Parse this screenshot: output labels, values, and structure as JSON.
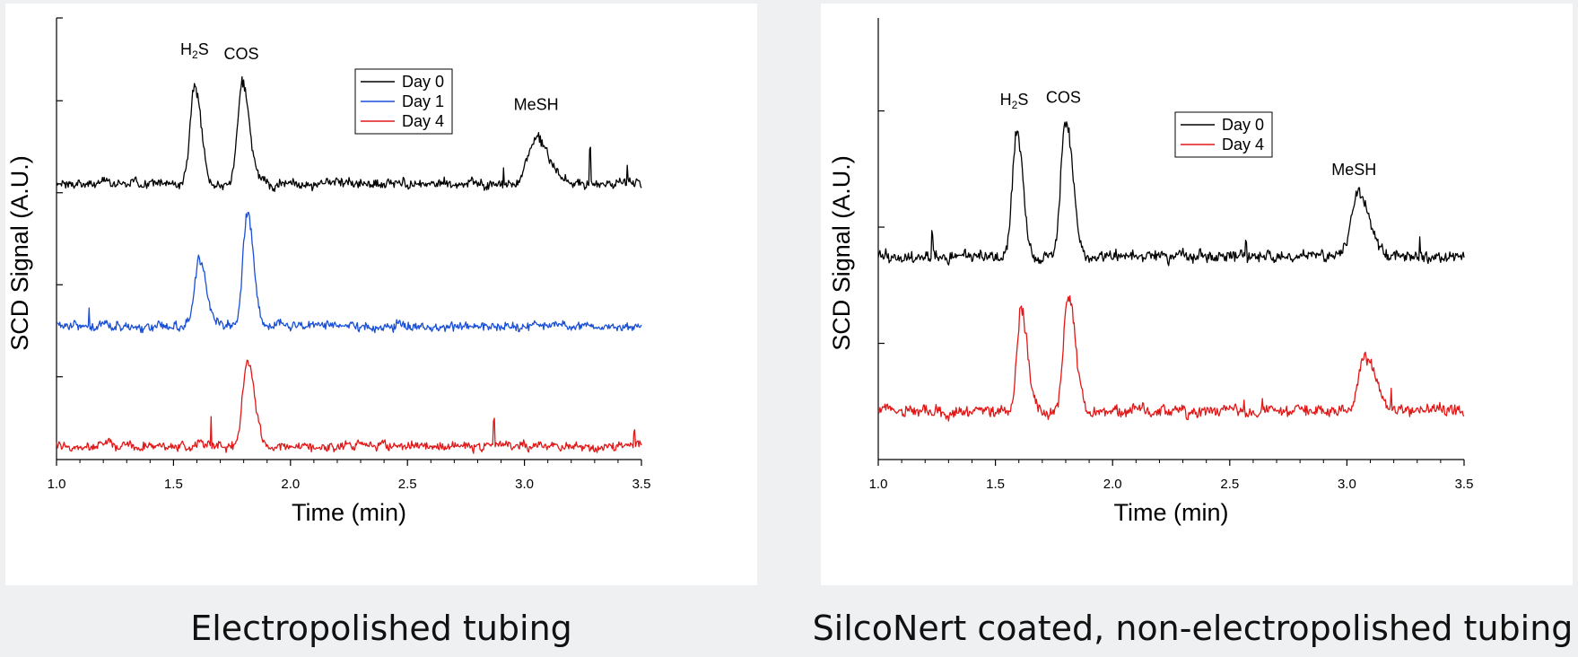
{
  "chart_data": [
    {
      "type": "line",
      "xlabel": "Time (min)",
      "ylabel": "SCD Signal (A.U.)",
      "xlim": [
        1.0,
        3.5
      ],
      "ylim": [
        0,
        4.8
      ],
      "xticks": [
        "1.0",
        "1.5",
        "2.0",
        "2.5",
        "3.0",
        "3.5"
      ],
      "ytick_values": [
        0.9,
        1.9,
        2.9,
        3.9,
        4.9
      ],
      "grid": false,
      "legend_position": "top-center",
      "caption": "Electropolished tubing",
      "series": [
        {
          "name": "Day 0",
          "color": "#000000",
          "baseline": 3.0,
          "peaks": [
            {
              "x": 1.59,
              "height": 1.1,
              "width": 0.018
            },
            {
              "x": 1.795,
              "height": 1.1,
              "width": 0.02
            },
            {
              "x": 3.05,
              "height": 0.48,
              "width": 0.035
            }
          ],
          "spikes": [
            {
              "x": 2.91,
              "height": 0.25
            },
            {
              "x": 3.28,
              "height": 0.45
            },
            {
              "x": 3.44,
              "height": 0.2
            }
          ]
        },
        {
          "name": "Day 1",
          "color": "#1a4fd6",
          "baseline": 1.45,
          "peaks": [
            {
              "x": 1.61,
              "height": 0.7,
              "width": 0.02
            },
            {
              "x": 1.815,
              "height": 1.25,
              "width": 0.018
            }
          ],
          "spikes": [
            {
              "x": 1.14,
              "height": 0.25
            }
          ]
        },
        {
          "name": "Day 4",
          "color": "#e01818",
          "baseline": 0.15,
          "peaks": [
            {
              "x": 1.815,
              "height": 0.95,
              "width": 0.02
            }
          ],
          "spikes": [
            {
              "x": 1.66,
              "height": 0.3
            },
            {
              "x": 2.87,
              "height": 0.3
            },
            {
              "x": 3.47,
              "height": 0.15
            }
          ]
        }
      ],
      "annotations": [
        {
          "text": "H",
          "sub": "2",
          "tail": "S",
          "x": 1.59,
          "y": 4.4
        },
        {
          "text": "COS",
          "x": 1.79,
          "y": 4.35
        },
        {
          "text": "MeSH",
          "x": 3.05,
          "y": 3.8
        }
      ]
    },
    {
      "type": "line",
      "xlabel": "Time (min)",
      "ylabel": "SCD Signal (A.U.)",
      "xlim": [
        1.0,
        3.5
      ],
      "ylim": [
        0,
        3.8
      ],
      "xticks": [
        "1.0",
        "1.5",
        "2.0",
        "2.5",
        "3.0",
        "3.5"
      ],
      "ytick_values": [
        1.0,
        2.0,
        3.0
      ],
      "grid": false,
      "legend_position": "top-center",
      "caption": "SilcoNert coated, non-electropolished tubing",
      "series": [
        {
          "name": "Day 0",
          "color": "#000000",
          "baseline": 1.75,
          "peaks": [
            {
              "x": 1.59,
              "height": 1.05,
              "width": 0.018
            },
            {
              "x": 1.8,
              "height": 1.2,
              "width": 0.02
            },
            {
              "x": 3.05,
              "height": 0.55,
              "width": 0.03
            }
          ],
          "spikes": [
            {
              "x": 1.23,
              "height": 0.2
            },
            {
              "x": 2.57,
              "height": 0.2
            },
            {
              "x": 3.31,
              "height": 0.2
            }
          ]
        },
        {
          "name": "Day 4",
          "color": "#e01818",
          "baseline": 0.42,
          "peaks": [
            {
              "x": 1.61,
              "height": 0.92,
              "width": 0.018
            },
            {
              "x": 1.81,
              "height": 1.0,
              "width": 0.02
            },
            {
              "x": 3.08,
              "height": 0.45,
              "width": 0.03
            }
          ],
          "spikes": [
            {
              "x": 2.56,
              "height": 0.12
            },
            {
              "x": 2.64,
              "height": 0.12
            },
            {
              "x": 3.19,
              "height": 0.15
            }
          ]
        }
      ],
      "annotations": [
        {
          "text": "H",
          "sub": "2",
          "tail": "S",
          "x": 1.58,
          "y": 3.05
        },
        {
          "text": "COS",
          "x": 1.79,
          "y": 3.07
        },
        {
          "text": "MeSH",
          "x": 3.03,
          "y": 2.45
        }
      ]
    }
  ],
  "captions": {
    "left": "Electropolished tubing",
    "right": "SilcoNert coated, non-electropolished tubing"
  }
}
